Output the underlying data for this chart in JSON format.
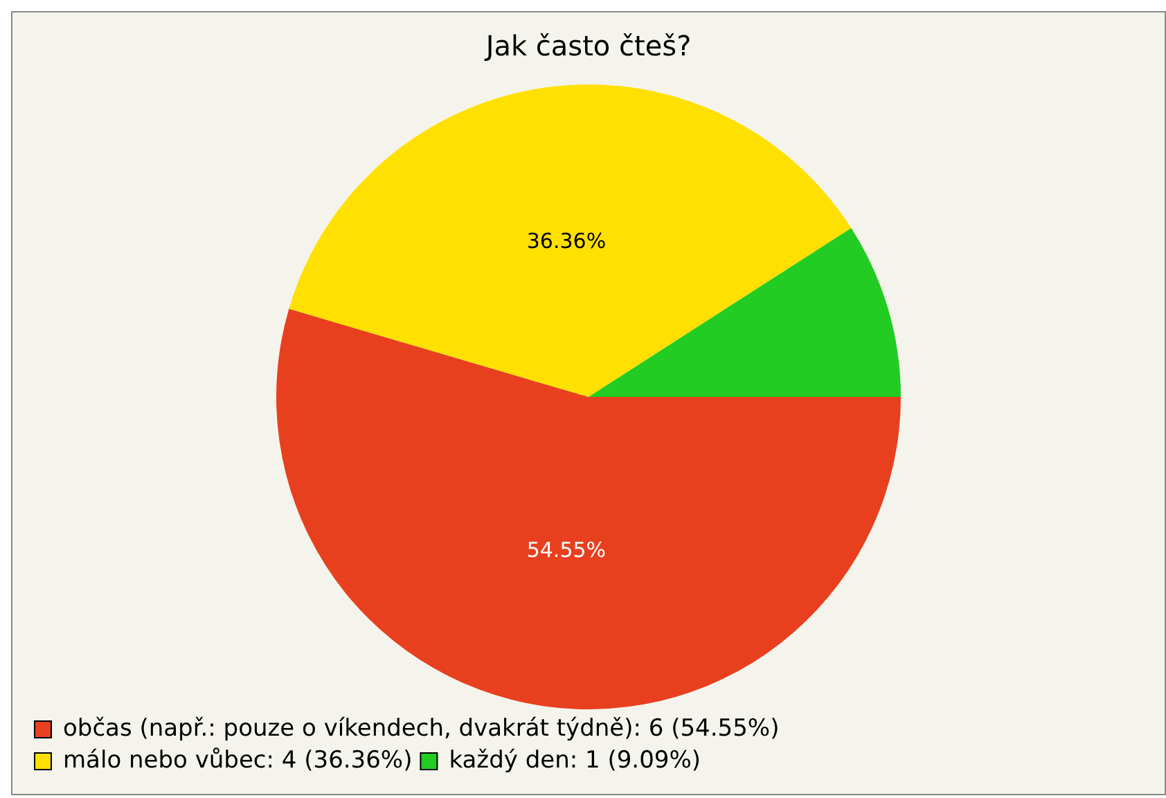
{
  "chart_data": {
    "type": "pie",
    "title": "Jak často čteš?",
    "categories": [
      "občas (např.: pouze o víkendech, dvakrát týdně): 6 (54.55%)",
      "málo nebo vůbec: 4 (36.36%)",
      "každý den: 1 (9.09%)"
    ],
    "values": [
      54.55,
      36.36,
      9.09
    ],
    "colors": [
      "#e8401f",
      "#ffe000",
      "#22cc22"
    ],
    "value_labels": [
      "54.55%",
      "36.36%",
      null
    ],
    "legend": "bottom left"
  }
}
